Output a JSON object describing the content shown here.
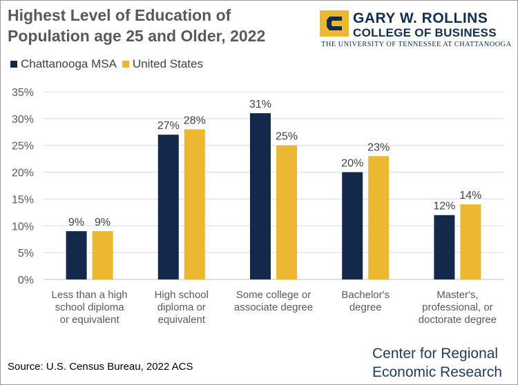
{
  "title": "Highest Level of Education of Population age 25 and Older, 2022",
  "logo": {
    "line1": "GARY W. ROLLINS",
    "line2": "COLLEGE OF BUSINESS",
    "line3": "THE UNIVERSITY OF TENNESSEE AT CHATTANOOGA",
    "icon": "utc-c-mark"
  },
  "source": "Source: U.S. Census Bureau, 2022 ACS",
  "center_name": [
    "Center for Regional",
    "Economic Research"
  ],
  "colors": {
    "chattanooga": "#13294b",
    "united_states": "#ecb731",
    "axis_text": "#595959",
    "gridline": "#d9d9d9"
  },
  "chart_data": {
    "type": "bar",
    "categories": [
      [
        "Less than a high",
        "school diploma",
        "or equivalent"
      ],
      [
        "High school",
        "diploma or",
        "equivalent"
      ],
      [
        "Some college or",
        "associate degree"
      ],
      [
        "Bachelor's",
        "degree"
      ],
      [
        "Master's,",
        "professional, or",
        "doctorate degree"
      ]
    ],
    "series": [
      {
        "name": "Chattanooga MSA",
        "values": [
          9,
          27,
          31,
          20,
          12
        ],
        "color": "#13294b"
      },
      {
        "name": "United States",
        "values": [
          9,
          28,
          25,
          23,
          14
        ],
        "color": "#ecb731"
      }
    ],
    "data_labels": [
      [
        "9%",
        "27%",
        "31%",
        "20%",
        "12%"
      ],
      [
        "9%",
        "28%",
        "25%",
        "23%",
        "14%"
      ]
    ],
    "ylim": [
      0,
      35
    ],
    "yticks": [
      "0%",
      "5%",
      "10%",
      "15%",
      "20%",
      "25%",
      "30%",
      "35%"
    ],
    "grid": true,
    "legend_position": "top-left",
    "xlabel": "",
    "ylabel": ""
  }
}
